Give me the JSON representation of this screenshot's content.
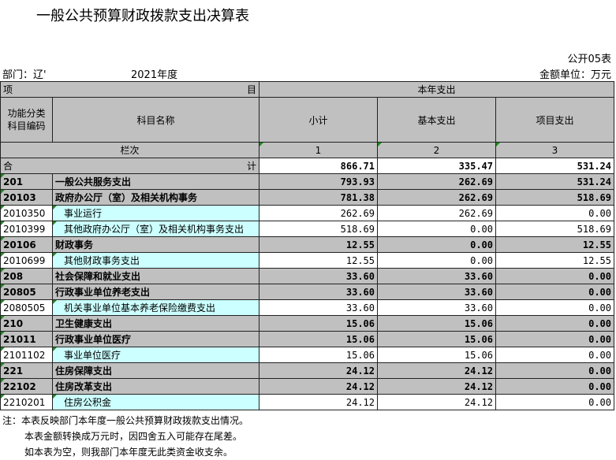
{
  "title": "一般公共预算财政拨款支出决算表",
  "form_no": "公开05表",
  "dept_label": "部门：辽'",
  "year": "2021年度",
  "unit": "金额单位：万元",
  "header": {
    "xiang": "项",
    "mu": "目",
    "current_year": "本年支出",
    "func_code_1": "功能分类",
    "func_code_2": "科目编码",
    "subject_name": "科目名称",
    "subtotal": "小计",
    "basic": "基本支出",
    "project": "项目支出",
    "col_label": "栏次",
    "col1": "1",
    "col2": "2",
    "col3": "3",
    "total_he": "合",
    "total_ji": "计",
    "total_sub": "866.71",
    "total_basic": "335.47",
    "total_proj": "531.24"
  },
  "rows": [
    {
      "code": "201",
      "name": "一般公共服务支出",
      "sub": "793.93",
      "basic": "262.69",
      "proj": "531.24",
      "level": 1
    },
    {
      "code": "20103",
      "name": "政府办公厅（室）及相关机构事务",
      "sub": "781.38",
      "basic": "262.69",
      "proj": "518.69",
      "level": 2
    },
    {
      "code": "2010350",
      "name": "事业运行",
      "sub": "262.69",
      "basic": "262.69",
      "proj": "0.00",
      "level": 3
    },
    {
      "code": "2010399",
      "name": "其他政府办公厅（室）及相关机构事务支出",
      "sub": "518.69",
      "basic": "0.00",
      "proj": "518.69",
      "level": 3
    },
    {
      "code": "20106",
      "name": "财政事务",
      "sub": "12.55",
      "basic": "0.00",
      "proj": "12.55",
      "level": 2
    },
    {
      "code": "2010699",
      "name": "其他财政事务支出",
      "sub": "12.55",
      "basic": "0.00",
      "proj": "12.55",
      "level": 3
    },
    {
      "code": "208",
      "name": "社会保障和就业支出",
      "sub": "33.60",
      "basic": "33.60",
      "proj": "0.00",
      "level": 1
    },
    {
      "code": "20805",
      "name": "行政事业单位养老支出",
      "sub": "33.60",
      "basic": "33.60",
      "proj": "0.00",
      "level": 2
    },
    {
      "code": "2080505",
      "name": "机关事业单位基本养老保险缴费支出",
      "sub": "33.60",
      "basic": "33.60",
      "proj": "0.00",
      "level": 3
    },
    {
      "code": "210",
      "name": "卫生健康支出",
      "sub": "15.06",
      "basic": "15.06",
      "proj": "0.00",
      "level": 1
    },
    {
      "code": "21011",
      "name": "行政事业单位医疗",
      "sub": "15.06",
      "basic": "15.06",
      "proj": "0.00",
      "level": 2
    },
    {
      "code": "2101102",
      "name": "事业单位医疗",
      "sub": "15.06",
      "basic": "15.06",
      "proj": "0.00",
      "level": 3
    },
    {
      "code": "221",
      "name": "住房保障支出",
      "sub": "24.12",
      "basic": "24.12",
      "proj": "0.00",
      "level": 1
    },
    {
      "code": "22102",
      "name": "住房改革支出",
      "sub": "24.12",
      "basic": "24.12",
      "proj": "0.00",
      "level": 2
    },
    {
      "code": "2210201",
      "name": "住房公积金",
      "sub": "24.12",
      "basic": "24.12",
      "proj": "0.00",
      "level": 3
    }
  ],
  "notes": [
    "注：本表反映部门本年度一般公共预算财政拨款支出情况。",
    "本表金额转换成万元时，因四舍五入可能存在尾差。",
    "如本表为空，则我部门本年度无此类资金收支余。"
  ]
}
